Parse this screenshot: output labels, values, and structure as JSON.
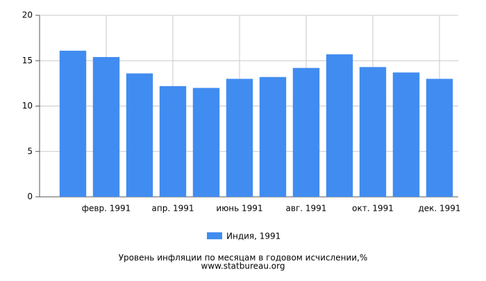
{
  "chart_data": {
    "type": "bar",
    "title": "Уровень инфляции по месяцам в годовом исчислении,%",
    "subtitle": "www.statbureau.org",
    "categories": [
      null,
      "февр. 1991",
      null,
      "апр. 1991",
      null,
      "июнь 1991",
      null,
      "авг. 1991",
      null,
      "окт. 1991",
      null,
      "дек. 1991"
    ],
    "series": [
      {
        "name": "Индия, 1991",
        "color": "#418cf0",
        "values": [
          16.1,
          15.4,
          13.6,
          12.2,
          12.0,
          13.0,
          13.2,
          14.2,
          15.7,
          14.3,
          13.7,
          13.0
        ]
      }
    ],
    "ylim": [
      0,
      20
    ],
    "yticks": [
      0,
      5,
      10,
      15,
      20
    ],
    "grid": true
  }
}
